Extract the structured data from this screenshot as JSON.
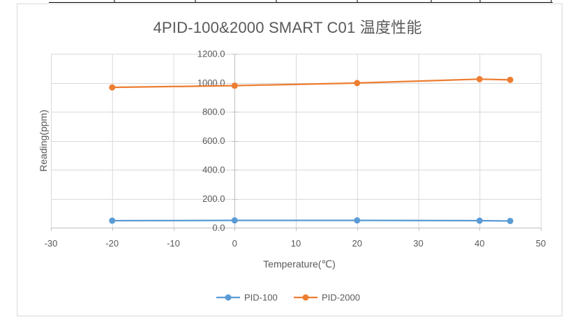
{
  "chart_data": {
    "type": "scatter",
    "title": "4PID-100&2000 SMART C01 温度性能",
    "xlabel": "Temperature(℃)",
    "ylabel": "Reading(ppm)",
    "xlim": [
      -30,
      50
    ],
    "ylim": [
      0,
      1200
    ],
    "x_ticks": [
      -30,
      -20,
      -10,
      0,
      10,
      20,
      30,
      40,
      50
    ],
    "y_ticks": [
      "0.0",
      "200.0",
      "400.0",
      "600.0",
      "800.0",
      "1000.0",
      "1200.0"
    ],
    "grid": true,
    "legend_position": "bottom",
    "series": [
      {
        "name": "PID-100",
        "color": "#5b9bd5",
        "x": [
          -20,
          0,
          20,
          40,
          45
        ],
        "y": [
          48,
          50,
          50,
          48,
          46
        ]
      },
      {
        "name": "PID-2000",
        "color": "#ed7d31",
        "x": [
          -20,
          0,
          20,
          40,
          45
        ],
        "y": [
          968,
          980,
          998,
          1025,
          1020
        ]
      }
    ]
  }
}
